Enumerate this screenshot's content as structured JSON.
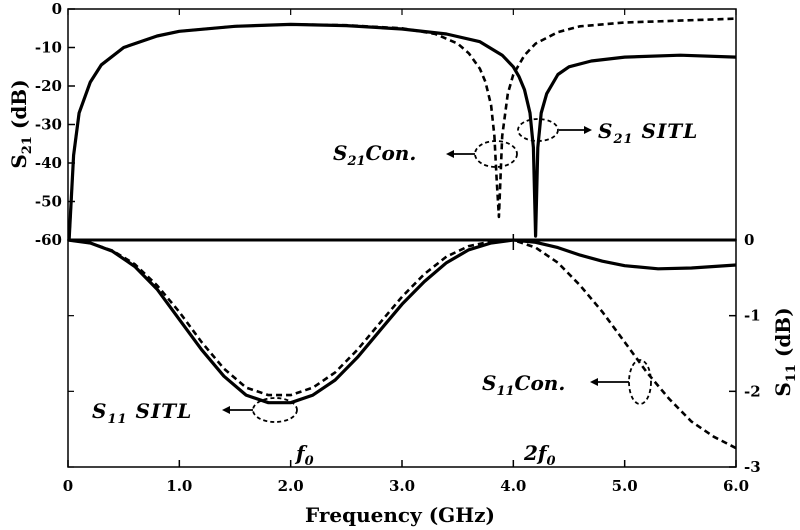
{
  "chart_data": {
    "type": "line",
    "xlabel": "Frequency (GHz)",
    "x_ticks": [
      "0",
      "1.0",
      "2.0",
      "3.0",
      "4.0",
      "5.0",
      "6.0"
    ],
    "xlim": [
      0,
      6
    ],
    "top_panel": {
      "ylabel_main": "S",
      "ylabel_sub": "21",
      "ylabel_unit": " (dB)",
      "ylim": [
        -60,
        0
      ],
      "y_ticks": [
        "0",
        "-10",
        "-20",
        "-30",
        "-40",
        "-50",
        "-60"
      ],
      "series": [
        {
          "name": "S21 SITL",
          "style": "solid",
          "x": [
            0.01,
            0.05,
            0.1,
            0.2,
            0.3,
            0.5,
            0.8,
            1.0,
            1.5,
            2.0,
            2.5,
            3.0,
            3.4,
            3.7,
            3.9,
            4.0,
            4.05,
            4.1,
            4.15,
            4.18,
            4.2,
            4.22,
            4.25,
            4.3,
            4.4,
            4.5,
            4.7,
            5.0,
            5.5,
            6.0
          ],
          "y": [
            -60,
            -38,
            -27,
            -19,
            -14.5,
            -10,
            -7,
            -5.8,
            -4.5,
            -4,
            -4.3,
            -5.2,
            -6.5,
            -8.5,
            -12,
            -15,
            -17.5,
            -21,
            -27,
            -36,
            -59,
            -36,
            -27,
            -22,
            -17,
            -15,
            -13.5,
            -12.5,
            -12,
            -12.5
          ]
        },
        {
          "name": "S21 Con.",
          "style": "dashed",
          "x": [
            0.01,
            0.05,
            0.1,
            0.2,
            0.3,
            0.5,
            0.8,
            1.0,
            1.5,
            2.0,
            2.5,
            3.0,
            3.3,
            3.5,
            3.6,
            3.7,
            3.75,
            3.8,
            3.83,
            3.85,
            3.87,
            3.9,
            3.95,
            4.0,
            4.1,
            4.2,
            4.4,
            4.6,
            5.0,
            5.5,
            6.0
          ],
          "y": [
            -60,
            -38,
            -27,
            -19,
            -14.5,
            -10,
            -7,
            -5.8,
            -4.5,
            -4,
            -4.2,
            -5,
            -6.5,
            -9,
            -11.5,
            -15.5,
            -19,
            -25,
            -33,
            -44,
            -54,
            -33,
            -22,
            -17,
            -12,
            -9,
            -6,
            -4.5,
            -3.5,
            -3,
            -2.5
          ]
        }
      ]
    },
    "bottom_panel": {
      "ylabel_main": "S",
      "ylabel_sub": "11",
      "ylabel_unit": " (dB)",
      "ylim": [
        -3,
        0
      ],
      "y_ticks": [
        "0",
        "-1",
        "-2",
        "-3"
      ],
      "series": [
        {
          "name": "S11 SITL",
          "style": "solid",
          "x": [
            0,
            0.2,
            0.4,
            0.6,
            0.8,
            1.0,
            1.2,
            1.4,
            1.6,
            1.8,
            2.0,
            2.2,
            2.4,
            2.6,
            2.8,
            3.0,
            3.2,
            3.4,
            3.6,
            3.8,
            4.0,
            4.2,
            4.4,
            4.6,
            4.8,
            5.0,
            5.3,
            5.6,
            6.0
          ],
          "y": [
            0,
            -0.04,
            -0.15,
            -0.35,
            -0.65,
            -1.05,
            -1.45,
            -1.8,
            -2.05,
            -2.15,
            -2.15,
            -2.05,
            -1.85,
            -1.55,
            -1.2,
            -0.85,
            -0.55,
            -0.3,
            -0.13,
            -0.04,
            0,
            -0.03,
            -0.1,
            -0.2,
            -0.28,
            -0.34,
            -0.38,
            -0.37,
            -0.33
          ]
        },
        {
          "name": "S11 Con.",
          "style": "dashed",
          "x": [
            0,
            0.2,
            0.4,
            0.6,
            0.8,
            1.0,
            1.2,
            1.4,
            1.6,
            1.8,
            2.0,
            2.2,
            2.4,
            2.6,
            2.8,
            3.0,
            3.2,
            3.4,
            3.6,
            3.8,
            4.0,
            4.2,
            4.4,
            4.6,
            4.8,
            5.0,
            5.2,
            5.4,
            5.6,
            5.8,
            6.0
          ],
          "y": [
            0,
            -0.04,
            -0.14,
            -0.32,
            -0.6,
            -0.95,
            -1.35,
            -1.7,
            -1.95,
            -2.05,
            -2.05,
            -1.95,
            -1.75,
            -1.45,
            -1.1,
            -0.75,
            -0.45,
            -0.22,
            -0.08,
            -0.02,
            0,
            -0.1,
            -0.3,
            -0.6,
            -0.95,
            -1.35,
            -1.75,
            -2.1,
            -2.4,
            -2.6,
            -2.75
          ]
        }
      ]
    },
    "annotations": {
      "s21_sitl": {
        "main": "S",
        "sub": "21",
        "rest": " SITL"
      },
      "s21_con": {
        "main": "S",
        "sub": "21",
        "rest": "Con."
      },
      "s11_sitl": {
        "main": "S",
        "sub": "11",
        "rest": " SITL"
      },
      "s11_con": {
        "main": "S",
        "sub": "11",
        "rest": "Con."
      },
      "f0": {
        "main": "f",
        "sub": "0"
      },
      "two_f0": {
        "main": "2f",
        "sub": "0"
      }
    }
  }
}
